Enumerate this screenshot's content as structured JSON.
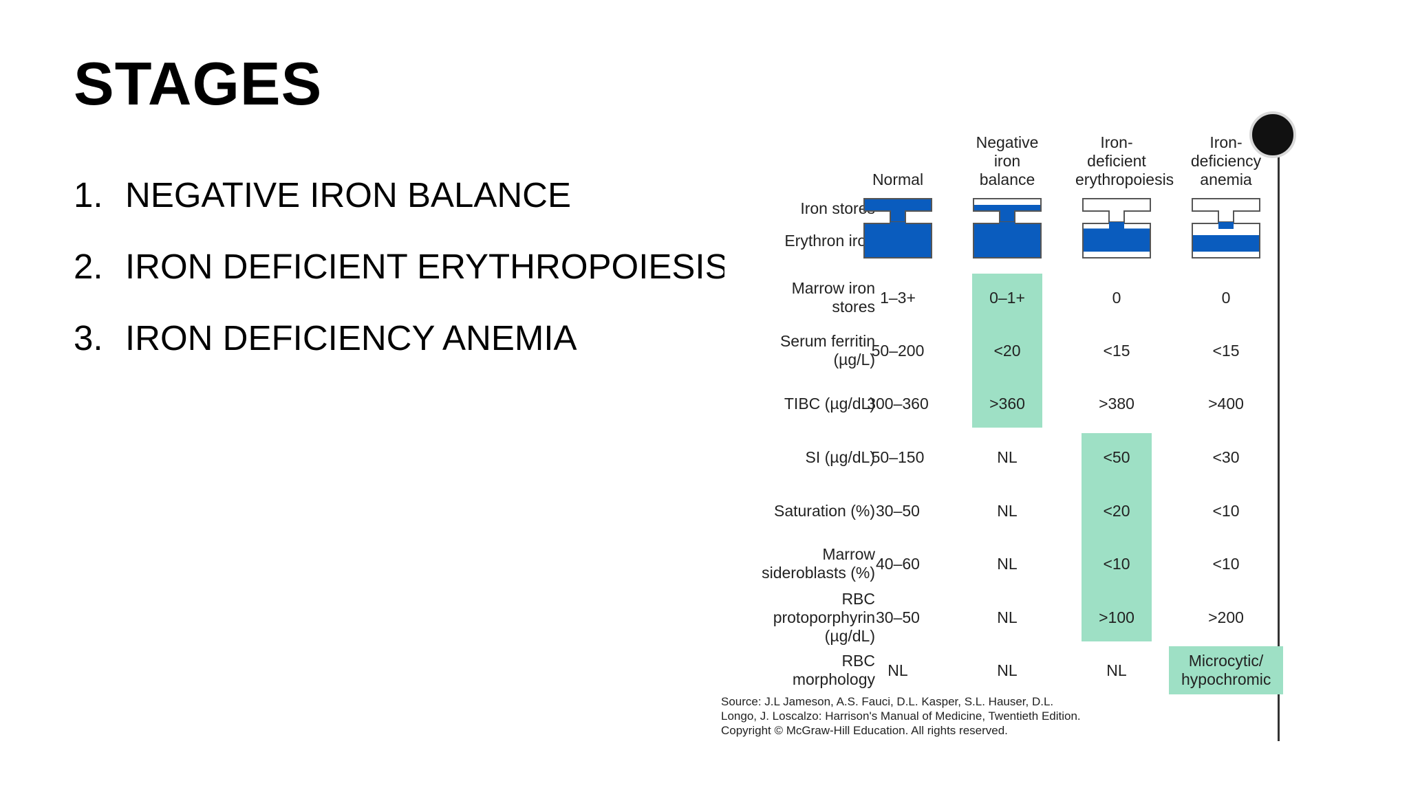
{
  "title": "STAGES",
  "stages": [
    {
      "number": "1.",
      "label": "NEGATIVE IRON BALANCE"
    },
    {
      "number": "2.",
      "label": "IRON DEFICIENT ERYTHROPOIESIS"
    },
    {
      "number": "3.",
      "label": "IRON DEFICIENCY ANEMIA"
    }
  ],
  "table": {
    "columns": [
      {
        "lines": [
          "Normal"
        ]
      },
      {
        "lines": [
          "Negative",
          "iron",
          "balance"
        ]
      },
      {
        "lines": [
          "Iron-",
          "deficient",
          "erythropoiesis"
        ]
      },
      {
        "lines": [
          "Iron-",
          "deficiency",
          "anemia"
        ]
      }
    ],
    "icon_labels": {
      "iron_stores": "Iron stores",
      "erythron_iron": "Erythron iron"
    },
    "iron_stores_fill": [
      1.0,
      0.5,
      0.0,
      0.0
    ],
    "erythron_iron_fill": [
      1.0,
      1.0,
      0.7,
      0.5
    ],
    "rows": [
      {
        "label": [
          "Marrow iron",
          "stores"
        ],
        "values": [
          "1–3+",
          "0–1+",
          "0",
          "0"
        ]
      },
      {
        "label": [
          "Serum ferritin",
          "(µg/L)"
        ],
        "values": [
          "50–200",
          "<20",
          "<15",
          "<15"
        ]
      },
      {
        "label": [
          "TIBC (µg/dL)"
        ],
        "values": [
          "300–360",
          ">360",
          ">380",
          ">400"
        ]
      },
      {
        "label": [
          "SI (µg/dL)"
        ],
        "values": [
          "50–150",
          "NL",
          "<50",
          "<30"
        ]
      },
      {
        "label": [
          "Saturation (%)"
        ],
        "values": [
          "30–50",
          "NL",
          "<20",
          "<10"
        ]
      },
      {
        "label": [
          "Marrow",
          "sideroblasts (%)"
        ],
        "values": [
          "40–60",
          "NL",
          "<10",
          "<10"
        ]
      },
      {
        "label": [
          "RBC",
          "protoporphyrin",
          "(µg/dL)"
        ],
        "values": [
          "30–50",
          "NL",
          ">100",
          ">200"
        ]
      },
      {
        "label": [
          "RBC",
          "morphology"
        ],
        "values": [
          "NL",
          "NL",
          "NL",
          [
            "Microcytic/",
            "hypochromic"
          ]
        ]
      }
    ],
    "highlight_color": "#9ee0c5",
    "icon_color": "#0a5cbe",
    "source_lines": [
      "Source: J.L Jameson, A.S. Fauci, D.L. Kasper, S.L. Hauser, D.L.",
      "Longo, J. Loscalzo: Harrison's Manual of Medicine, Twentieth Edition.",
      "Copyright © McGraw-Hill Education. All rights reserved."
    ]
  }
}
